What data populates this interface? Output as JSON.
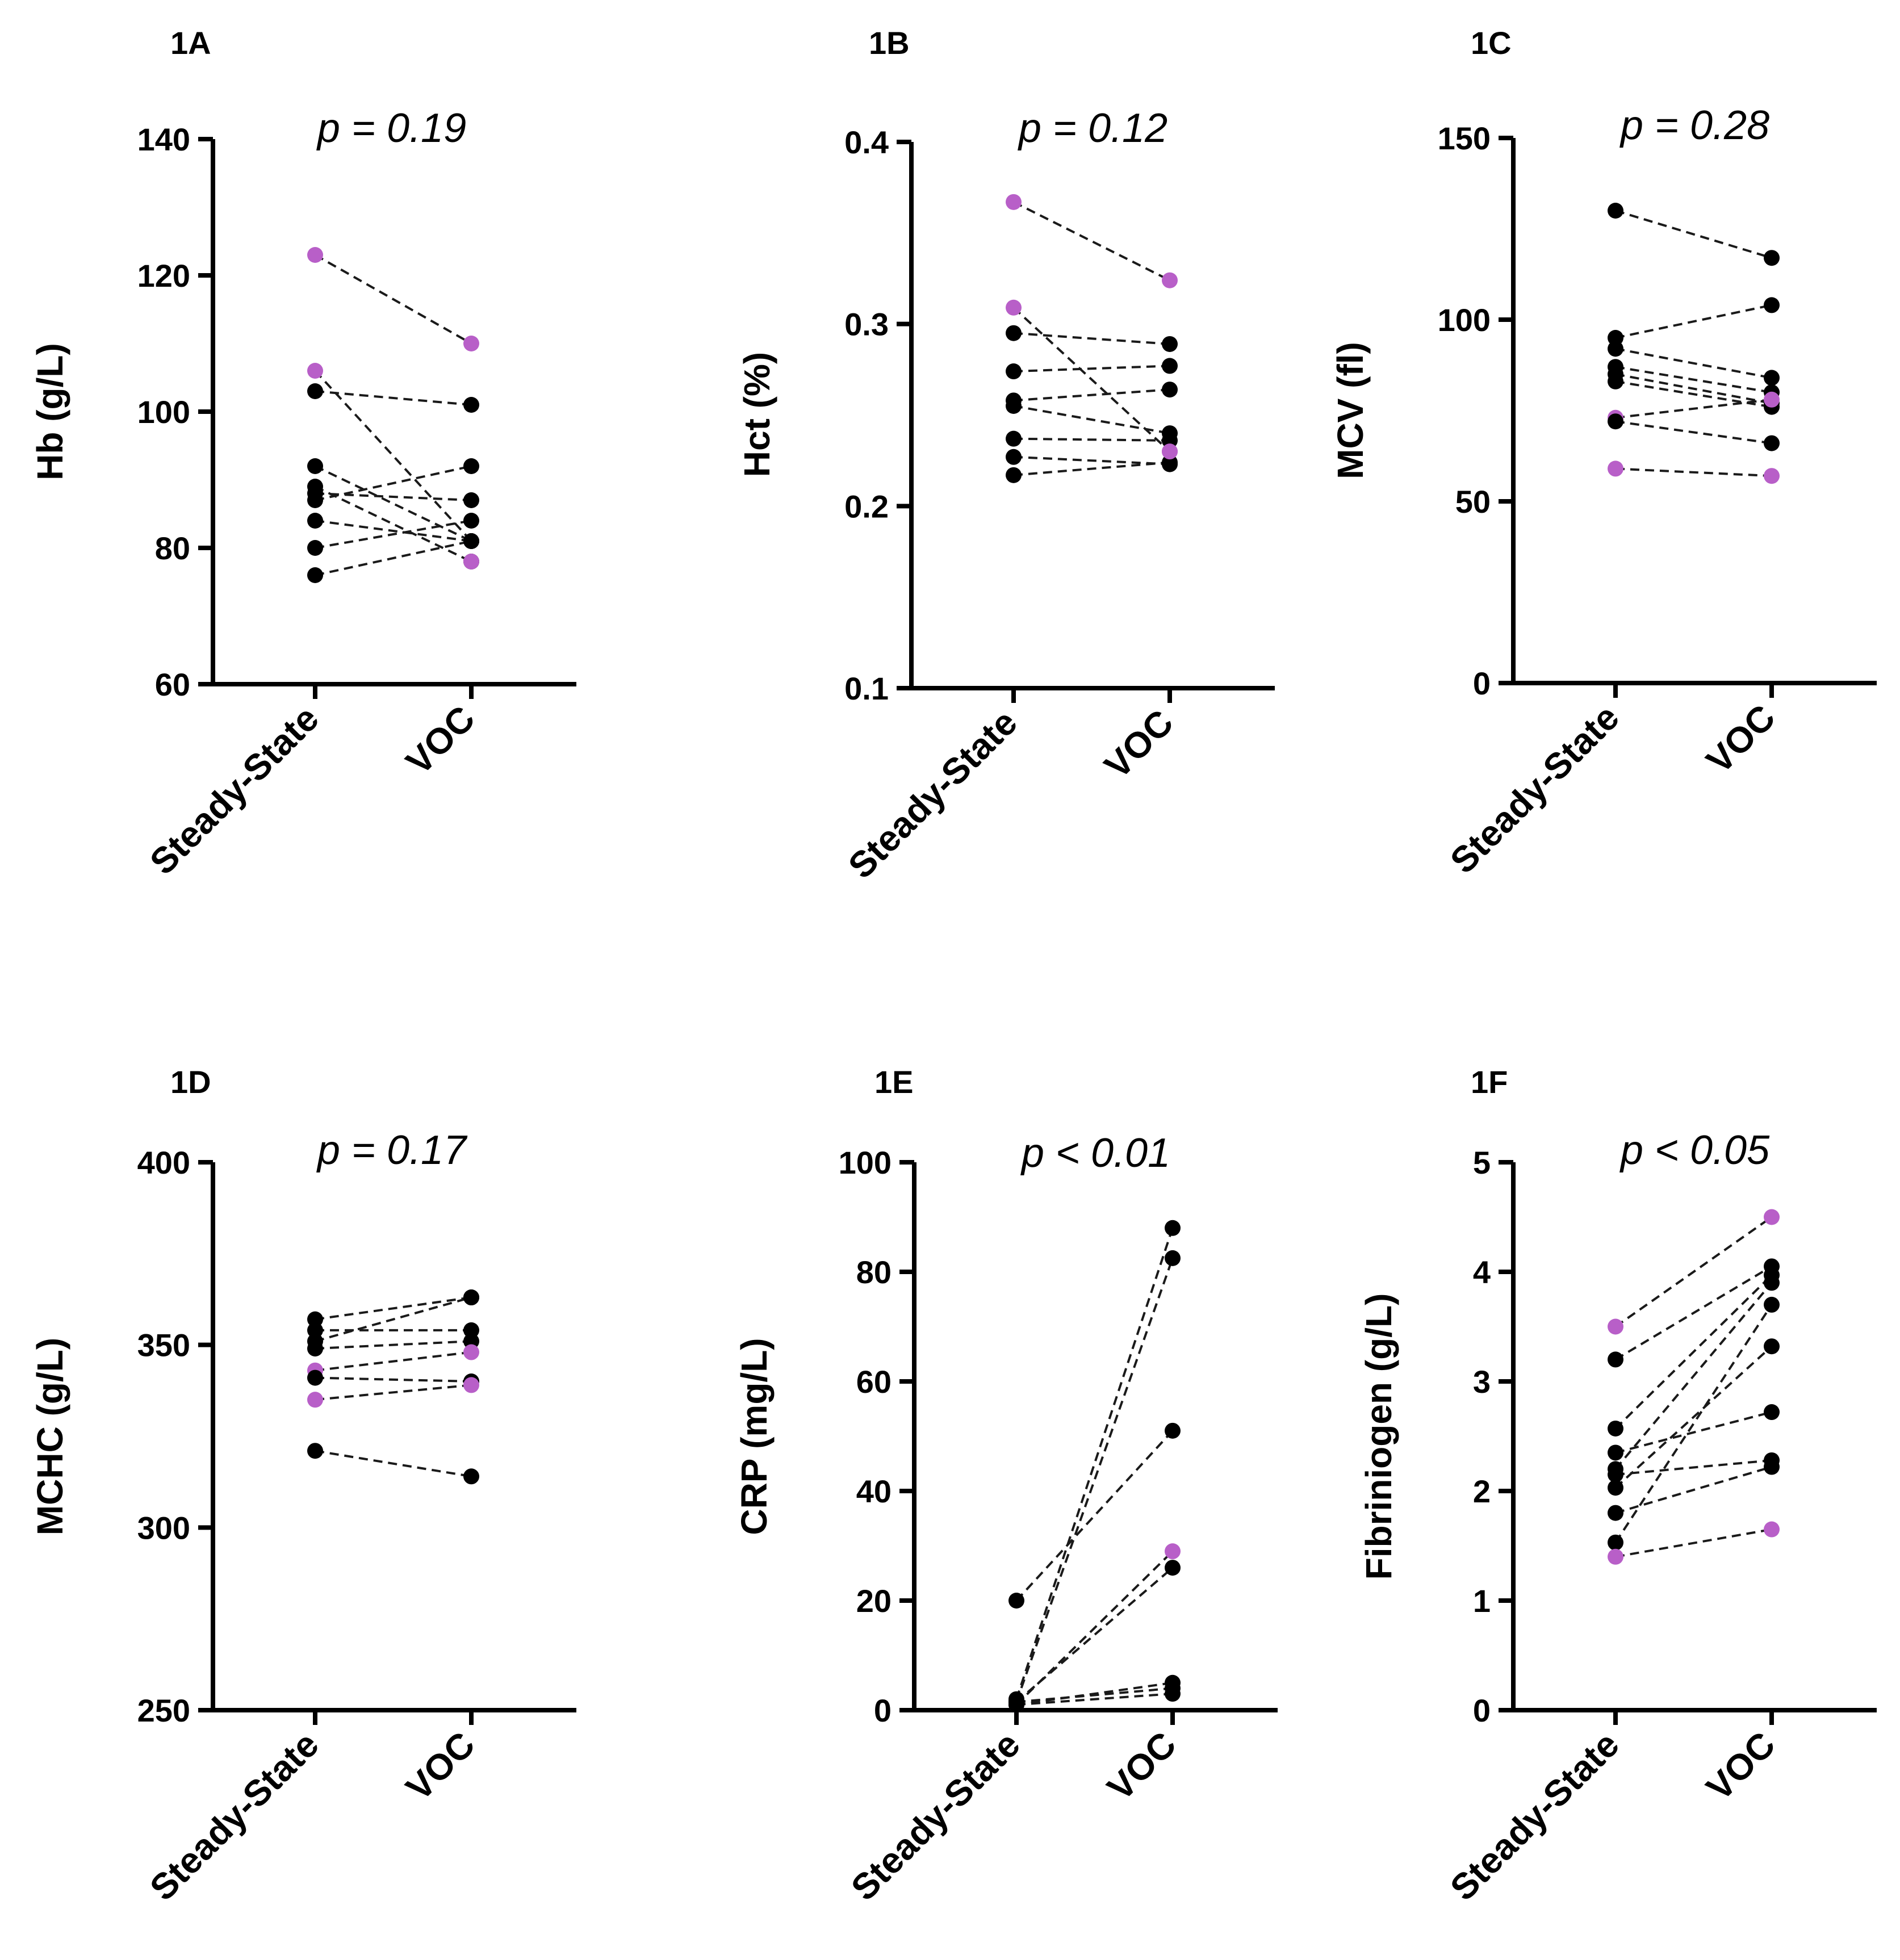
{
  "colors": {
    "black_point": "#000000",
    "purple_point": "#b85fc8"
  },
  "chart_data": [
    {
      "id": "1A",
      "type": "scatter",
      "panel_label": "1A",
      "pvalue_text": "p = 0.19",
      "ylabel": "Hb (g/L)",
      "categories": [
        "Steady-State",
        "VOC"
      ],
      "ylim": [
        60,
        140
      ],
      "yticks": [
        60,
        80,
        100,
        120,
        140
      ],
      "ytick_labels": [
        "60",
        "80",
        "100",
        "120",
        "140"
      ],
      "pairs": [
        {
          "steady": 123,
          "voc": 110,
          "color": "purple"
        },
        {
          "steady": 106,
          "voc": 81,
          "color": "purple"
        },
        {
          "steady": 103,
          "voc": 101,
          "color": "black"
        },
        {
          "steady": 92,
          "voc": 81,
          "color": "black"
        },
        {
          "steady": 89,
          "voc": 78,
          "color": "black"
        },
        {
          "steady": 88,
          "voc": 87,
          "color": "black"
        },
        {
          "steady": 87,
          "voc": 92,
          "color": "black"
        },
        {
          "steady": 84,
          "voc": 81,
          "color": "black"
        },
        {
          "steady": 80,
          "voc": 84,
          "color": "black"
        },
        {
          "steady": 76,
          "voc": 81,
          "color": "black"
        }
      ],
      "extra_points": [
        {
          "group": "VOC",
          "value": 78,
          "color": "purple"
        }
      ]
    },
    {
      "id": "1B",
      "type": "scatter",
      "panel_label": "1B",
      "pvalue_text": "p = 0.12",
      "ylabel": "Hct (%)",
      "categories": [
        "Steady-State",
        "VOC"
      ],
      "ylim": [
        0.1,
        0.4
      ],
      "yticks": [
        0.1,
        0.2,
        0.3,
        0.4
      ],
      "ytick_labels": [
        "0.1",
        "0.2",
        "0.3",
        "0.4"
      ],
      "pairs": [
        {
          "steady": 0.367,
          "voc": 0.324,
          "color": "purple"
        },
        {
          "steady": 0.309,
          "voc": 0.23,
          "color": "purple"
        },
        {
          "steady": 0.295,
          "voc": 0.289,
          "color": "black"
        },
        {
          "steady": 0.274,
          "voc": 0.277,
          "color": "black"
        },
        {
          "steady": 0.258,
          "voc": 0.264,
          "color": "black"
        },
        {
          "steady": 0.255,
          "voc": 0.24,
          "color": "black"
        },
        {
          "steady": 0.237,
          "voc": 0.236,
          "color": "black"
        },
        {
          "steady": 0.227,
          "voc": 0.223,
          "color": "black"
        },
        {
          "steady": 0.217,
          "voc": 0.224,
          "color": "black"
        }
      ],
      "extra_points": [
        {
          "group": "VOC",
          "value": 0.23,
          "color": "purple"
        }
      ]
    },
    {
      "id": "1C",
      "type": "scatter",
      "panel_label": "1C",
      "pvalue_text": "p = 0.28",
      "ylabel": "MCV (fl)",
      "categories": [
        "Steady-State",
        "VOC"
      ],
      "ylim": [
        0,
        150
      ],
      "yticks": [
        0,
        50,
        100,
        150
      ],
      "ytick_labels": [
        "0",
        "50",
        "100",
        "150"
      ],
      "pairs": [
        {
          "steady": 130,
          "voc": 117,
          "color": "black"
        },
        {
          "steady": 95,
          "voc": 104,
          "color": "black"
        },
        {
          "steady": 92,
          "voc": 84,
          "color": "black"
        },
        {
          "steady": 87,
          "voc": 80,
          "color": "black"
        },
        {
          "steady": 85,
          "voc": 77,
          "color": "black"
        },
        {
          "steady": 83,
          "voc": 76,
          "color": "black"
        },
        {
          "steady": 73,
          "voc": 78,
          "color": "purple"
        },
        {
          "steady": 72,
          "voc": 66,
          "color": "black"
        },
        {
          "steady": 59,
          "voc": 57,
          "color": "purple"
        }
      ],
      "extra_points": []
    },
    {
      "id": "1D",
      "type": "scatter",
      "panel_label": "1D",
      "pvalue_text": "p = 0.17",
      "ylabel": "MCHC (g/L)",
      "categories": [
        "Steady-State",
        "VOC"
      ],
      "ylim": [
        250,
        400
      ],
      "yticks": [
        250,
        300,
        350,
        400
      ],
      "ytick_labels": [
        "250",
        "300",
        "350",
        "400"
      ],
      "pairs": [
        {
          "steady": 357,
          "voc": 363,
          "color": "black"
        },
        {
          "steady": 354,
          "voc": 354,
          "color": "black"
        },
        {
          "steady": 351,
          "voc": 363,
          "color": "black"
        },
        {
          "steady": 349,
          "voc": 351,
          "color": "black"
        },
        {
          "steady": 343,
          "voc": 348,
          "color": "purple"
        },
        {
          "steady": 341,
          "voc": 340,
          "color": "black"
        },
        {
          "steady": 335,
          "voc": 339,
          "color": "purple"
        },
        {
          "steady": 321,
          "voc": 314,
          "color": "black"
        }
      ],
      "extra_points": []
    },
    {
      "id": "1E",
      "type": "scatter",
      "panel_label": "1E",
      "pvalue_text": "p < 0.01",
      "ylabel": "CRP (mg/L)",
      "categories": [
        "Steady-State",
        "VOC"
      ],
      "ylim": [
        0,
        100
      ],
      "yticks": [
        0,
        20,
        40,
        60,
        80,
        100
      ],
      "ytick_labels": [
        "0",
        "20",
        "40",
        "60",
        "80",
        "100"
      ],
      "pairs": [
        {
          "steady": 20,
          "voc": 51,
          "color": "black"
        },
        {
          "steady": 2,
          "voc": 88,
          "color": "black"
        },
        {
          "steady": 1.5,
          "voc": 82.5,
          "color": "black"
        },
        {
          "steady": 1,
          "voc": 29,
          "color": "purple"
        },
        {
          "steady": 1.5,
          "voc": 26,
          "color": "black"
        },
        {
          "steady": 1,
          "voc": 5,
          "color": "black"
        },
        {
          "steady": 1.5,
          "voc": 4,
          "color": "black"
        },
        {
          "steady": 1,
          "voc": 3,
          "color": "black"
        }
      ],
      "extra_points": []
    },
    {
      "id": "1F",
      "type": "scatter",
      "panel_label": "1F",
      "pvalue_text": "p < 0.05",
      "ylabel": "Fibriniogen (g/L)",
      "categories": [
        "Steady-State",
        "VOC"
      ],
      "ylim": [
        0,
        5
      ],
      "yticks": [
        0,
        1,
        2,
        3,
        4,
        5
      ],
      "ytick_labels": [
        "0",
        "1",
        "2",
        "3",
        "4",
        "5"
      ],
      "pairs": [
        {
          "steady": 3.5,
          "voc": 4.5,
          "color": "purple"
        },
        {
          "steady": 3.2,
          "voc": 4.05,
          "color": "black"
        },
        {
          "steady": 2.57,
          "voc": 3.97,
          "color": "black"
        },
        {
          "steady": 2.35,
          "voc": 2.72,
          "color": "black"
        },
        {
          "steady": 2.2,
          "voc": 3.9,
          "color": "black"
        },
        {
          "steady": 2.15,
          "voc": 2.28,
          "color": "black"
        },
        {
          "steady": 2.03,
          "voc": 3.32,
          "color": "black"
        },
        {
          "steady": 1.8,
          "voc": 2.22,
          "color": "black"
        },
        {
          "steady": 1.53,
          "voc": 3.7,
          "color": "black"
        },
        {
          "steady": 1.4,
          "voc": 1.65,
          "color": "purple"
        }
      ],
      "extra_points": []
    }
  ]
}
